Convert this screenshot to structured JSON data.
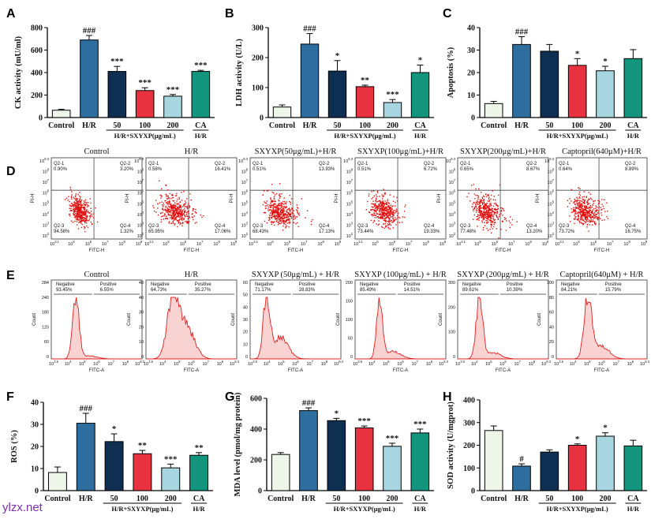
{
  "panels": {
    "A": "A",
    "B": "B",
    "C": "C",
    "D": "D",
    "E": "E",
    "F": "F",
    "G": "G",
    "H": "H"
  },
  "watermark": "ylzx.net",
  "group_common": {
    "x_group_label": "H/R+SXYXP(μg/mL)",
    "ca_sub": "H/R"
  },
  "colors": [
    "#eef6ea",
    "#2e6e9e",
    "#0f2f52",
    "#e8323f",
    "#a8d6e0",
    "#13947d"
  ],
  "bar_charts": [
    {
      "id": "A",
      "ylabel": "CK activity (mU/ml)",
      "ylim": [
        0,
        800
      ],
      "ticks": [
        0,
        200,
        400,
        600,
        800
      ],
      "categories": [
        "Control",
        "H/R",
        "50",
        "100",
        "200",
        "CA"
      ],
      "values": [
        65,
        690,
        410,
        240,
        190,
        410
      ],
      "errors": [
        8,
        40,
        45,
        25,
        15,
        10
      ],
      "annotations": [
        "",
        "###",
        "***",
        "***",
        "***",
        "***"
      ]
    },
    {
      "id": "B",
      "ylabel": "LDH activity (U/L)",
      "ylim": [
        0,
        300
      ],
      "ticks": [
        0,
        100,
        200,
        300
      ],
      "categories": [
        "Control",
        "H/R",
        "50",
        "100",
        "200",
        "CA"
      ],
      "values": [
        35,
        245,
        155,
        103,
        50,
        150
      ],
      "errors": [
        7,
        35,
        35,
        5,
        10,
        25
      ],
      "annotations": [
        "",
        "###",
        "*",
        "**",
        "***",
        "*"
      ]
    },
    {
      "id": "C",
      "ylabel": "Apoptosis (%)",
      "ylim": [
        0,
        40
      ],
      "ticks": [
        0,
        10,
        20,
        30,
        40
      ],
      "categories": [
        "Control",
        "H/R",
        "50",
        "100",
        "200",
        "CA"
      ],
      "values": [
        6.2,
        32.5,
        29.5,
        23.2,
        20.8,
        26.2
      ],
      "errors": [
        1,
        3.5,
        3,
        3,
        2,
        4
      ],
      "annotations": [
        "",
        "###",
        "",
        "*",
        "*",
        ""
      ]
    },
    {
      "id": "F",
      "ylabel": "ROS (%)",
      "ylim": [
        0,
        40
      ],
      "ticks": [
        0,
        10,
        20,
        30,
        40
      ],
      "categories": [
        "Control",
        "H/R",
        "50",
        "100",
        "200",
        "CA"
      ],
      "values": [
        8.2,
        30.5,
        22.2,
        16.7,
        10.3,
        16.0
      ],
      "errors": [
        2.5,
        4.5,
        3.5,
        1.5,
        1.7,
        1.2
      ],
      "annotations": [
        "",
        "###",
        "*",
        "**",
        "***",
        "**"
      ]
    },
    {
      "id": "G",
      "ylabel": "MDA level (pmol/mg protein)",
      "ylim": [
        0,
        600
      ],
      "ticks": [
        0,
        200,
        400,
        600
      ],
      "categories": [
        "Control",
        "H/R",
        "50",
        "100",
        "200",
        "CA"
      ],
      "values": [
        235,
        520,
        455,
        408,
        288,
        375
      ],
      "errors": [
        12,
        18,
        15,
        12,
        20,
        25
      ],
      "annotations": [
        "",
        "###",
        "*",
        "***",
        "***",
        "***"
      ]
    },
    {
      "id": "H",
      "ylabel": "SOD activity (U/mgprot)",
      "ylim": [
        0,
        400
      ],
      "ticks": [
        0,
        100,
        200,
        300,
        400
      ],
      "categories": [
        "Control",
        "H/R",
        "50",
        "100",
        "200",
        "CA"
      ],
      "values": [
        265,
        108,
        170,
        200,
        240,
        197
      ],
      "errors": [
        20,
        10,
        10,
        6,
        15,
        25
      ],
      "annotations": [
        "",
        "#",
        "",
        "*",
        "*",
        ""
      ]
    }
  ],
  "flow_D": {
    "ylabel": "PI-H",
    "xlabel": "FITC-H",
    "xticks": [
      "10^3.1",
      "10^5",
      "10^6",
      "10^7",
      "10^8",
      "10^9"
    ],
    "yticks": [
      "10^9.3",
      "10^8",
      "10^7",
      "10^6",
      "10^5",
      "10^4",
      "10^3",
      "10^2"
    ],
    "panels": [
      {
        "title": "Control",
        "q1": "Q2-1\n0.90%",
        "q2": "Q2-2\n3.20%",
        "q3": "Q2-3\n94.58%",
        "q4": "Q2-4\n1.32%"
      },
      {
        "title": "H/R",
        "q1": "Q2-1\n0.58%",
        "q2": "Q2-2\n16.41%",
        "q3": "Q2-3\n65.95%",
        "q4": "Q2-4\n17.06%"
      },
      {
        "title": "SXYXP(50μg/mL)+H/R",
        "q1": "Q2-1\n0.51%",
        "q2": "Q2-2\n13.93%",
        "q3": "Q2-3\n68.43%",
        "q4": "Q2-4\n17.13%"
      },
      {
        "title": "SXYXP(100μg/mL)+H/R",
        "q1": "Q2-1\n0.51%",
        "q2": "Q2-2\n6.72%",
        "q3": "Q2-3\n73.44%",
        "q4": "Q2-4\n19.33%"
      },
      {
        "title": "SXYXP(200μg/mL)+H/R",
        "q1": "Q2-1\n0.65%",
        "q2": "Q2-2\n8.67%",
        "q3": "Q2-3\n77.48%",
        "q4": "Q2-4\n13.20%"
      },
      {
        "title": "Captopril(640μM)+H/R",
        "q1": "Q2-1\n0.64%",
        "q2": "Q2-2\n8.89%",
        "q3": "Q2-3\n73.72%",
        "q4": "Q2-4\n16.75%"
      }
    ]
  },
  "hist_E": {
    "ylabel": "Count",
    "xlabel": "FITC-A",
    "xticks": [
      "10^3.5",
      "10^4",
      "10^5",
      "10^6",
      "10^7",
      "10^8",
      "10^9.3"
    ],
    "panels": [
      {
        "title": "Control",
        "neg": "Negative\n93.45%",
        "pos": "Positive\n6.55%",
        "yticks": [
          "284",
          "240",
          "180",
          "120",
          "60",
          "0"
        ]
      },
      {
        "title": "H/R",
        "neg": "Negative\n64.73%",
        "pos": "Positive\n35.27%",
        "yticks": [
          "48",
          "40",
          "30",
          "20",
          "10",
          "0"
        ]
      },
      {
        "title": "SXYXP (50μg/mL) + H/R",
        "neg": "Negative\n71.17%",
        "pos": "Positive\n28.83%",
        "yticks": [
          "60",
          "50",
          "40",
          "30",
          "20",
          "10",
          "0"
        ]
      },
      {
        "title": "SXYXP (100μg/mL) + H/R",
        "neg": "Negative\n85.49%",
        "pos": "Positive\n14.51%",
        "yticks": [
          "200",
          "150",
          "100",
          "50",
          "0"
        ]
      },
      {
        "title": "SXYXP (200μg/mL) + H/R",
        "neg": "Negative\n89.61%",
        "pos": "Positive\n10.39%",
        "yticks": [
          "300",
          "200",
          "100",
          "0"
        ]
      },
      {
        "title": "Captopril(640μM) + H/R",
        "neg": "Negative\n84.21%",
        "pos": "Positive\n15.79%",
        "yticks": [
          "100",
          "80",
          "60",
          "40",
          "20",
          "0"
        ]
      }
    ]
  },
  "chart_data": [
    {
      "type": "bar",
      "title": "A",
      "ylabel": "CK activity (mU/ml)",
      "categories": [
        "Control",
        "H/R",
        "50",
        "100",
        "200",
        "CA"
      ],
      "values": [
        65,
        690,
        410,
        240,
        190,
        410
      ],
      "ylim": [
        0,
        800
      ]
    },
    {
      "type": "bar",
      "title": "B",
      "ylabel": "LDH activity (U/L)",
      "categories": [
        "Control",
        "H/R",
        "50",
        "100",
        "200",
        "CA"
      ],
      "values": [
        35,
        245,
        155,
        103,
        50,
        150
      ],
      "ylim": [
        0,
        300
      ]
    },
    {
      "type": "bar",
      "title": "C",
      "ylabel": "Apoptosis (%)",
      "categories": [
        "Control",
        "H/R",
        "50",
        "100",
        "200",
        "CA"
      ],
      "values": [
        6.2,
        32.5,
        29.5,
        23.2,
        20.8,
        26.2
      ],
      "ylim": [
        0,
        40
      ]
    },
    {
      "type": "bar",
      "title": "F",
      "ylabel": "ROS (%)",
      "categories": [
        "Control",
        "H/R",
        "50",
        "100",
        "200",
        "CA"
      ],
      "values": [
        8.2,
        30.5,
        22.2,
        16.7,
        10.3,
        16.0
      ],
      "ylim": [
        0,
        40
      ]
    },
    {
      "type": "bar",
      "title": "G",
      "ylabel": "MDA level (pmol/mg protein)",
      "categories": [
        "Control",
        "H/R",
        "50",
        "100",
        "200",
        "CA"
      ],
      "values": [
        235,
        520,
        455,
        408,
        288,
        375
      ],
      "ylim": [
        0,
        600
      ]
    },
    {
      "type": "bar",
      "title": "H",
      "ylabel": "SOD activity (U/mgprot)",
      "categories": [
        "Control",
        "H/R",
        "50",
        "100",
        "200",
        "CA"
      ],
      "values": [
        265,
        108,
        170,
        200,
        240,
        197
      ],
      "ylim": [
        0,
        400
      ]
    }
  ]
}
